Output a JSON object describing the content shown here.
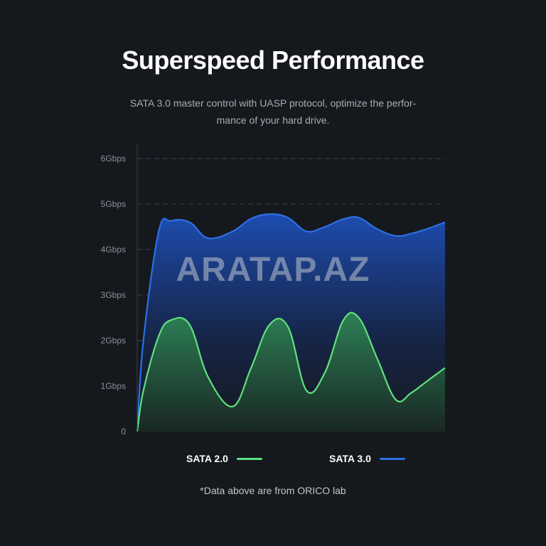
{
  "header": {
    "title": "Superspeed Performance",
    "subtitle": "SATA 3.0 master control with UASP protocol, optimize the perfor-mance of your hard drive."
  },
  "watermark": "ARATAP.AZ",
  "footnote": "*Data above are from ORICO lab",
  "colors": {
    "background": "#15181d",
    "sata2": "#5fe07e",
    "sata3": "#2d6fe6"
  },
  "chart_data": {
    "type": "area",
    "title": "",
    "xlabel": "",
    "ylabel": "",
    "ylim": [
      0,
      6
    ],
    "yticks": [
      {
        "value": 0,
        "label": "0"
      },
      {
        "value": 1,
        "label": "1Gbps"
      },
      {
        "value": 2,
        "label": "2Gbps"
      },
      {
        "value": 3,
        "label": "3Gbps"
      },
      {
        "value": 4,
        "label": "4Gbps"
      },
      {
        "value": 5,
        "label": "5Gbps"
      },
      {
        "value": 6,
        "label": "6Gbps"
      }
    ],
    "grid": true,
    "legend": "bottom",
    "x": [
      0,
      0.02,
      0.07,
      0.11,
      0.17,
      0.23,
      0.31,
      0.37,
      0.43,
      0.49,
      0.55,
      0.61,
      0.67,
      0.72,
      0.78,
      0.84,
      0.89,
      0.94,
      1.0
    ],
    "series": [
      {
        "name": "SATA 3.0",
        "color": "#2d6fe6",
        "values": [
          0,
          2.0,
          4.4,
          4.63,
          4.6,
          4.25,
          4.4,
          4.68,
          4.78,
          4.7,
          4.4,
          4.5,
          4.67,
          4.7,
          4.45,
          4.3,
          4.35,
          4.45,
          4.6
        ]
      },
      {
        "name": "SATA 2.0",
        "color": "#5fe07e",
        "values": [
          0,
          0.9,
          2.1,
          2.45,
          2.35,
          1.2,
          0.55,
          1.4,
          2.35,
          2.3,
          0.9,
          1.3,
          2.45,
          2.5,
          1.6,
          0.7,
          0.85,
          1.1,
          1.4
        ]
      }
    ]
  }
}
